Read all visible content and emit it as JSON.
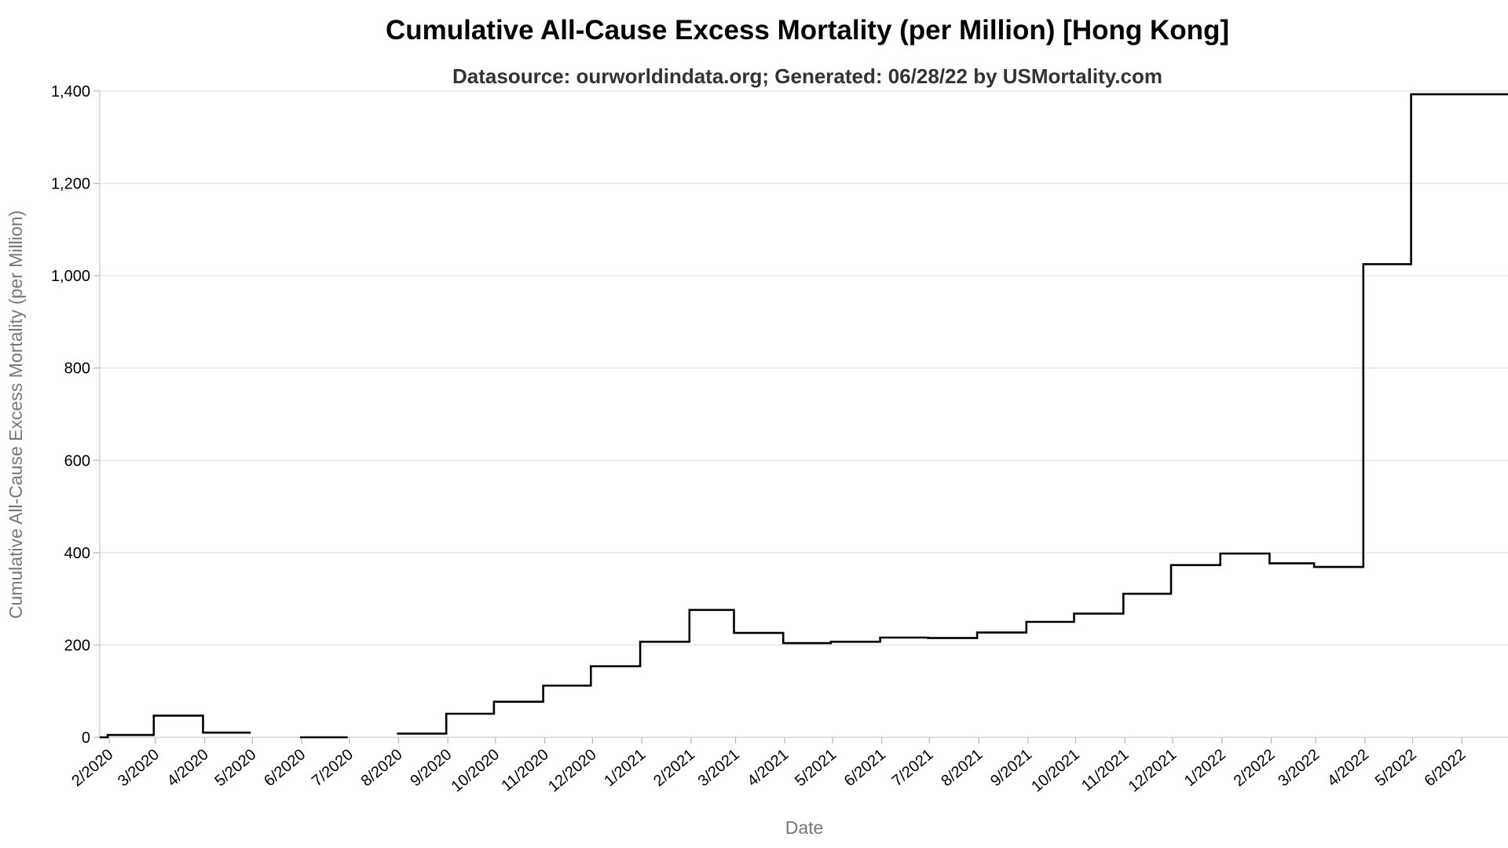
{
  "chart_data": {
    "type": "line",
    "title": "Cumulative All-Cause Excess Mortality (per Million) [Hong Kong]",
    "subtitle": "Datasource: ourworldindata.org; Generated: 06/28/22 by USMortality.com",
    "xlabel": "Date",
    "ylabel": "Cumulative All-Cause Excess Mortality (per Million)",
    "ylim": [
      0,
      1400
    ],
    "xlim": [
      "2020-01-26",
      "2022-06-30"
    ],
    "yticks": [
      0,
      200,
      400,
      600,
      800,
      1000,
      1200,
      1400
    ],
    "ytick_labels": [
      "0",
      "200",
      "400",
      "600",
      "800",
      "1,000",
      "1,200",
      "1,400"
    ],
    "xticks": [
      "2020-02-01",
      "2020-03-01",
      "2020-04-01",
      "2020-05-01",
      "2020-06-01",
      "2020-07-01",
      "2020-08-01",
      "2020-09-01",
      "2020-10-01",
      "2020-11-01",
      "2020-12-01",
      "2021-01-01",
      "2021-02-01",
      "2021-03-01",
      "2021-04-01",
      "2021-05-01",
      "2021-06-01",
      "2021-07-01",
      "2021-08-01",
      "2021-09-01",
      "2021-10-01",
      "2021-11-01",
      "2021-12-01",
      "2022-01-01",
      "2022-02-01",
      "2022-03-01",
      "2022-04-01",
      "2022-05-01",
      "2022-06-01"
    ],
    "xtick_labels": [
      "2/2020",
      "3/2020",
      "4/2020",
      "5/2020",
      "6/2020",
      "7/2020",
      "8/2020",
      "9/2020",
      "10/2020",
      "11/2020",
      "12/2020",
      "1/2021",
      "2/2021",
      "3/2021",
      "4/2021",
      "5/2021",
      "6/2021",
      "7/2021",
      "8/2021",
      "9/2021",
      "10/2021",
      "11/2021",
      "12/2021",
      "1/2022",
      "2/2022",
      "3/2022",
      "4/2022",
      "5/2022",
      "6/2022"
    ],
    "grid": true,
    "color": "#000000",
    "steps": [
      {
        "start": "2020-01-26",
        "end": "2020-01-31",
        "value": 0
      },
      {
        "start": "2020-01-31",
        "end": "2020-02-29",
        "value": 5
      },
      {
        "start": "2020-02-29",
        "end": "2020-03-31",
        "value": 47
      },
      {
        "start": "2020-03-31",
        "end": "2020-04-30",
        "value": 10
      },
      {
        "start": "2020-05-31",
        "end": "2020-06-30",
        "value": 0
      },
      {
        "start": "2020-07-31",
        "end": "2020-08-31",
        "value": 8
      },
      {
        "start": "2020-08-31",
        "end": "2020-09-30",
        "value": 51
      },
      {
        "start": "2020-09-30",
        "end": "2020-10-31",
        "value": 77
      },
      {
        "start": "2020-10-31",
        "end": "2020-11-30",
        "value": 112
      },
      {
        "start": "2020-11-30",
        "end": "2020-12-31",
        "value": 154
      },
      {
        "start": "2020-12-31",
        "end": "2021-01-31",
        "value": 207
      },
      {
        "start": "2021-01-31",
        "end": "2021-02-28",
        "value": 276
      },
      {
        "start": "2021-02-28",
        "end": "2021-03-31",
        "value": 226
      },
      {
        "start": "2021-03-31",
        "end": "2021-04-30",
        "value": 204
      },
      {
        "start": "2021-04-30",
        "end": "2021-05-31",
        "value": 207
      },
      {
        "start": "2021-05-31",
        "end": "2021-06-30",
        "value": 216
      },
      {
        "start": "2021-06-30",
        "end": "2021-07-31",
        "value": 215
      },
      {
        "start": "2021-07-31",
        "end": "2021-08-31",
        "value": 227
      },
      {
        "start": "2021-08-31",
        "end": "2021-09-30",
        "value": 250
      },
      {
        "start": "2021-09-30",
        "end": "2021-10-31",
        "value": 268
      },
      {
        "start": "2021-10-31",
        "end": "2021-11-30",
        "value": 311
      },
      {
        "start": "2021-11-30",
        "end": "2021-12-31",
        "value": 373
      },
      {
        "start": "2021-12-31",
        "end": "2022-01-31",
        "value": 398
      },
      {
        "start": "2022-01-31",
        "end": "2022-02-28",
        "value": 377
      },
      {
        "start": "2022-02-28",
        "end": "2022-03-31",
        "value": 369
      },
      {
        "start": "2022-03-31",
        "end": "2022-04-30",
        "value": 1025
      },
      {
        "start": "2022-04-30",
        "end": "2022-06-30",
        "value": 1393
      }
    ]
  }
}
